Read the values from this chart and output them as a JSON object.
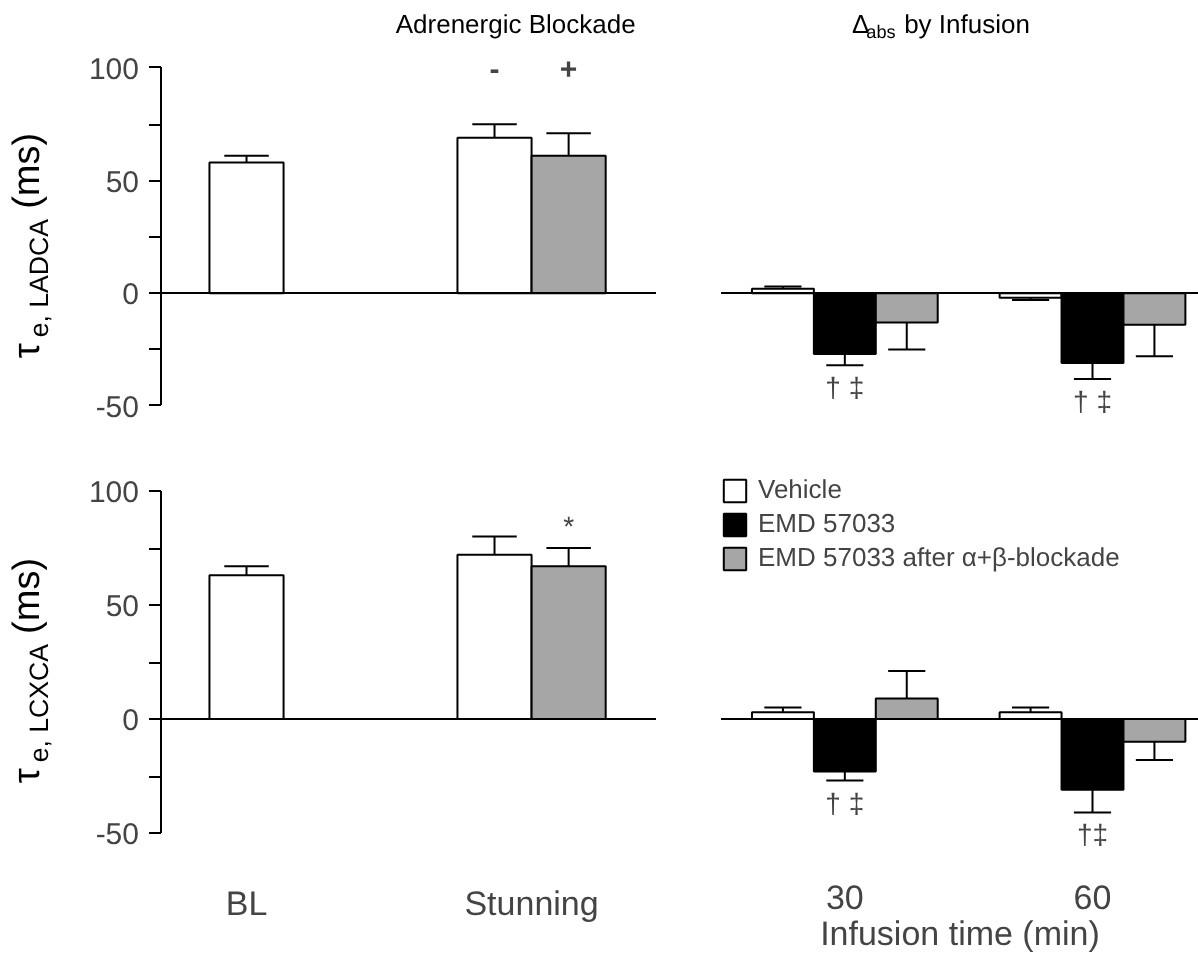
{
  "chart_data": [
    {
      "type": "bar",
      "title": "Adrenergic Blockade",
      "ylabel": "τ$_{e, LADCA}$ (ms)",
      "categories": [
        null,
        null
      ],
      "series": [
        {
          "name": "-",
          "color": "#ffffff",
          "values": [
            58,
            69
          ],
          "errors": [
            [
              58,
              61
            ],
            [
              69,
              75
            ]
          ]
        },
        {
          "name": "+",
          "color": "#a6a6a6",
          "values": [
            null,
            61
          ],
          "errors": [
            null,
            [
              61,
              71
            ]
          ]
        }
      ],
      "ylim": [
        -50,
        100
      ],
      "yticks": [
        -50,
        {
          "value": -25,
          "label": null
        },
        0,
        {
          "value": 25,
          "label": null
        },
        50,
        {
          "value": 75,
          "label": null
        },
        100
      ],
      "tick_labels": "y"
    },
    {
      "type": "bar",
      "title": "Δ$_{abs}$ by Infusion",
      "categories": [
        "30",
        "60"
      ],
      "series": [
        {
          "color": "#ffffff",
          "values": [
            2,
            -2
          ],
          "errors": [
            [
              2,
              3
            ],
            [
              -3,
              -2
            ]
          ]
        },
        {
          "color": "#000000",
          "values": [
            -27,
            -31
          ],
          "errors": [
            [
              -32,
              -27
            ],
            [
              -38,
              -31
            ]
          ],
          "value_labels": [
            "† ‡",
            "† ‡"
          ]
        },
        {
          "color": "#a6a6a6",
          "values": [
            -13,
            -14
          ],
          "errors": [
            [
              -25,
              -13
            ],
            [
              -28,
              -14
            ]
          ]
        }
      ],
      "ylim": [
        -50,
        100
      ],
      "tick_labels": false
    },
    {
      "type": "bar",
      "ylabel": "τ$_{e, LCXCA}$ (ms)",
      "categories": [
        "BL",
        "Stunning"
      ],
      "series": [
        {
          "color": "#ffffff",
          "values": [
            63,
            72
          ],
          "errors": [
            [
              63,
              67
            ],
            [
              72,
              80
            ]
          ]
        },
        {
          "color": "#a6a6a6",
          "values": [
            null,
            67
          ],
          "errors": [
            null,
            [
              67,
              75
            ]
          ],
          "value_labels": [
            null,
            "*"
          ]
        }
      ],
      "ylim": [
        -50,
        100
      ],
      "yticks": [
        -50,
        {
          "value": -25,
          "label": null
        },
        0,
        {
          "value": 25,
          "label": null
        },
        50,
        {
          "value": 75,
          "label": null
        },
        100
      ]
    },
    {
      "type": "bar",
      "xlabel": "Infusion time (min)",
      "categories": [
        "30",
        "60"
      ],
      "series": [
        {
          "name": "Vehicle",
          "color": "#ffffff",
          "values": [
            3,
            3
          ],
          "errors": [
            [
              3,
              5
            ],
            [
              3,
              5
            ]
          ]
        },
        {
          "name": "EMD 57033",
          "color": "#000000",
          "values": [
            -23,
            -31
          ],
          "errors": [
            [
              -27,
              -23
            ],
            [
              -41,
              -31
            ]
          ],
          "value_labels": [
            "† ‡",
            "†‡"
          ]
        },
        {
          "name": "EMD 57033 after α+β-blockade",
          "color": "#a6a6a6",
          "values": [
            9,
            -10
          ],
          "errors": [
            [
              9,
              21
            ],
            [
              -18,
              -10
            ]
          ]
        }
      ],
      "ylim": [
        -50,
        100
      ],
      "legend": "top left",
      "tick_labels": "x"
    }
  ]
}
